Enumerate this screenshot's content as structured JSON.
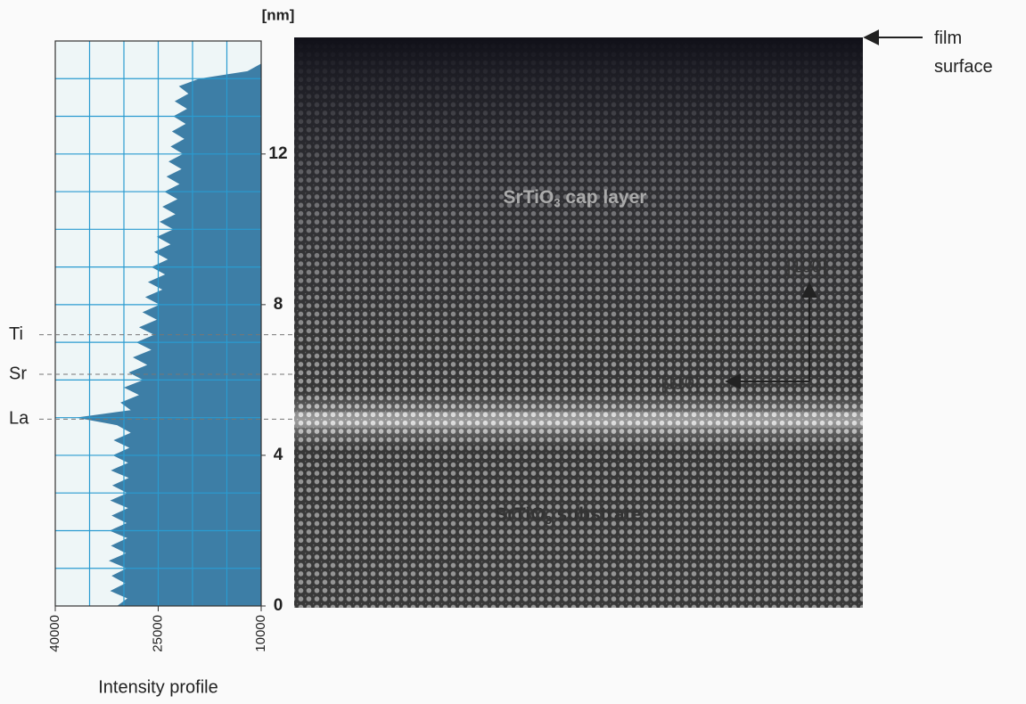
{
  "chart_data": {
    "type": "area",
    "orientation": "horizontal",
    "depth_label": "[nm]",
    "intensity_label": "Intensity profile",
    "depth_lim": [
      0,
      15
    ],
    "depth_ticks": [
      0,
      4,
      8,
      12
    ],
    "depth_gridlines": [
      1,
      2,
      3,
      4,
      5,
      6,
      7,
      8,
      9,
      10,
      11,
      12,
      13,
      14
    ],
    "intensity_lim": [
      40000,
      10000
    ],
    "intensity_ticks": [
      40000,
      25000,
      10000
    ],
    "intensity_gridlines": [
      35000,
      30000,
      25000,
      20000,
      15000
    ],
    "color": "#3d7ea6",
    "grid_color": "#2a9bd0",
    "depth": [
      0,
      0.2,
      0.4,
      0.6,
      0.8,
      1,
      1.2,
      1.4,
      1.6,
      1.8,
      2,
      2.2,
      2.4,
      2.6,
      2.8,
      3,
      3.2,
      3.4,
      3.6,
      3.8,
      4,
      4.2,
      4.4,
      4.6,
      4.8,
      5,
      5.2,
      5.4,
      5.6,
      5.8,
      6,
      6.2,
      6.4,
      6.6,
      6.8,
      7,
      7.2,
      7.4,
      7.6,
      7.8,
      8,
      8.2,
      8.4,
      8.6,
      8.8,
      9,
      9.2,
      9.4,
      9.6,
      9.8,
      10,
      10.2,
      10.4,
      10.6,
      10.8,
      11,
      11.2,
      11.4,
      11.6,
      11.8,
      12,
      12.2,
      12.4,
      12.6,
      12.8,
      13,
      13.2,
      13.4,
      13.6,
      13.8,
      14,
      14.2,
      14.4
    ],
    "intensity": [
      31000,
      29500,
      32000,
      29800,
      31800,
      29600,
      32200,
      29700,
      31900,
      29500,
      32100,
      29600,
      31800,
      29400,
      32000,
      29500,
      31700,
      29300,
      31900,
      29400,
      31600,
      29200,
      31500,
      29000,
      31000,
      37000,
      29000,
      30500,
      27800,
      30000,
      27200,
      29300,
      26600,
      28700,
      26000,
      28200,
      25600,
      27800,
      25200,
      27300,
      24800,
      26900,
      24400,
      26500,
      24000,
      26000,
      23600,
      25600,
      23200,
      25200,
      22800,
      24800,
      22500,
      24400,
      22200,
      24100,
      21900,
      23800,
      21600,
      23500,
      21400,
      23200,
      21200,
      23000,
      21000,
      22800,
      20800,
      22600,
      20600,
      22000,
      19000,
      12000,
      10000
    ],
    "annotations": [
      {
        "label": "Ti",
        "depth": 7.2
      },
      {
        "label": "Sr",
        "depth": 6.15
      },
      {
        "label": "La",
        "depth": 4.96
      }
    ],
    "image_labels": {
      "film_surface": [
        "film",
        "surface"
      ],
      "cap_layer": [
        "SrTiO",
        "3",
        " cap layer"
      ],
      "substrate": [
        "SrTiO",
        "3",
        " substrate"
      ],
      "direction_vertical": "[100]",
      "direction_horizontal": "[110]"
    }
  }
}
